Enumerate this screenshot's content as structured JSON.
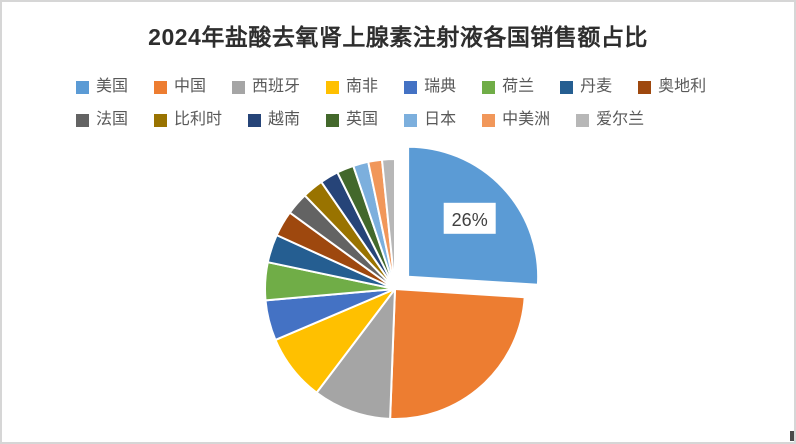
{
  "chart_data": {
    "type": "pie",
    "title": "2024年盐酸去氧肾上腺素注射液各国销售额占比",
    "legend_position": "top",
    "legend_rows": [
      8,
      7
    ],
    "data_labels_visible": [
      "美国"
    ],
    "series": [
      {
        "name": "美国",
        "value": 26.0,
        "color": "#5B9BD5",
        "exploded": true,
        "label": "26%"
      },
      {
        "name": "中国",
        "value": 24.6,
        "color": "#ED7D31"
      },
      {
        "name": "西班牙",
        "value": 9.7,
        "color": "#A5A5A5"
      },
      {
        "name": "南非",
        "value": 8.3,
        "color": "#FFC000"
      },
      {
        "name": "瑞典",
        "value": 5.0,
        "color": "#4472C4"
      },
      {
        "name": "荷兰",
        "value": 4.7,
        "color": "#70AD47"
      },
      {
        "name": "丹麦",
        "value": 3.5,
        "color": "#255E91"
      },
      {
        "name": "奥地利",
        "value": 3.2,
        "color": "#9E480E"
      },
      {
        "name": "法国",
        "value": 2.8,
        "color": "#636363"
      },
      {
        "name": "比利时",
        "value": 2.6,
        "color": "#997300"
      },
      {
        "name": "越南",
        "value": 2.3,
        "color": "#264478"
      },
      {
        "name": "英国",
        "value": 2.1,
        "color": "#43682B"
      },
      {
        "name": "日本",
        "value": 1.9,
        "color": "#7CAFDD"
      },
      {
        "name": "中美洲",
        "value": 1.7,
        "color": "#F1975A"
      },
      {
        "name": "爱尔兰",
        "value": 1.6,
        "color": "#B7B7B7"
      }
    ]
  },
  "colors": {
    "frame_border": "#d6d6d6",
    "title_text": "#2e2e2e",
    "legend_text": "#595959",
    "slice_separator": "#ffffff",
    "data_label_text": "#404040",
    "data_label_bg": "#ffffff"
  }
}
